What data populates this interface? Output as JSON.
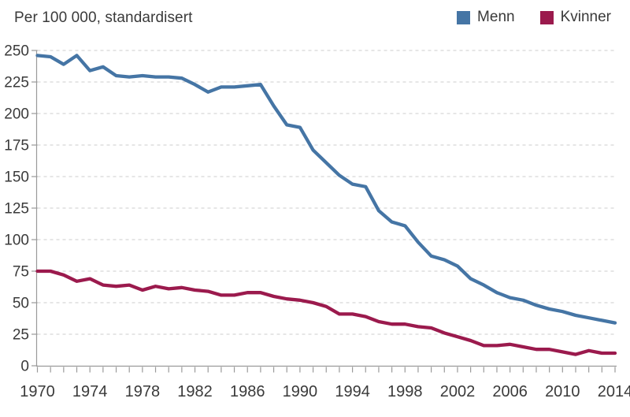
{
  "title": "Per 100 000, standardisert",
  "colors": {
    "menn": "#4575a5",
    "kvinner": "#9b1a4d",
    "grid": "#cccccc",
    "axis": "#9a9a9a",
    "text": "#3a3a3a"
  },
  "chart_data": {
    "type": "line",
    "title": "Per 100 000, standardisert",
    "x": [
      1970,
      1971,
      1972,
      1973,
      1974,
      1975,
      1976,
      1977,
      1978,
      1979,
      1980,
      1981,
      1982,
      1983,
      1984,
      1985,
      1986,
      1987,
      1988,
      1989,
      1990,
      1991,
      1992,
      1993,
      1994,
      1995,
      1996,
      1997,
      1998,
      1999,
      2000,
      2001,
      2002,
      2003,
      2004,
      2005,
      2006,
      2007,
      2008,
      2009,
      2010,
      2011,
      2012,
      2013,
      2014
    ],
    "series": [
      {
        "name": "Menn",
        "color": "#4575a5",
        "values": [
          246,
          245,
          239,
          246,
          234,
          237,
          230,
          229,
          230,
          229,
          229,
          228,
          223,
          217,
          221,
          221,
          222,
          223,
          206,
          191,
          189,
          171,
          161,
          151,
          144,
          142,
          123,
          114,
          111,
          98,
          87,
          84,
          79,
          69,
          64,
          58,
          54,
          52,
          48,
          45,
          43,
          40,
          38,
          36,
          34
        ]
      },
      {
        "name": "Kvinner",
        "color": "#9b1a4d",
        "values": [
          75,
          75,
          72,
          67,
          69,
          64,
          63,
          64,
          60,
          63,
          61,
          62,
          60,
          59,
          56,
          56,
          58,
          58,
          55,
          53,
          52,
          50,
          47,
          41,
          41,
          39,
          35,
          33,
          33,
          31,
          30,
          26,
          23,
          20,
          16,
          16,
          17,
          15,
          13,
          13,
          11,
          9,
          12,
          10,
          10
        ]
      }
    ],
    "ylim": [
      0,
      250
    ],
    "ytick_step": 25,
    "xtick_labels": [
      1970,
      1974,
      1978,
      1982,
      1986,
      1990,
      1994,
      1998,
      2002,
      2006,
      2010,
      2014
    ],
    "grid": "horizontal-dashed",
    "legend_position": "top-right"
  }
}
